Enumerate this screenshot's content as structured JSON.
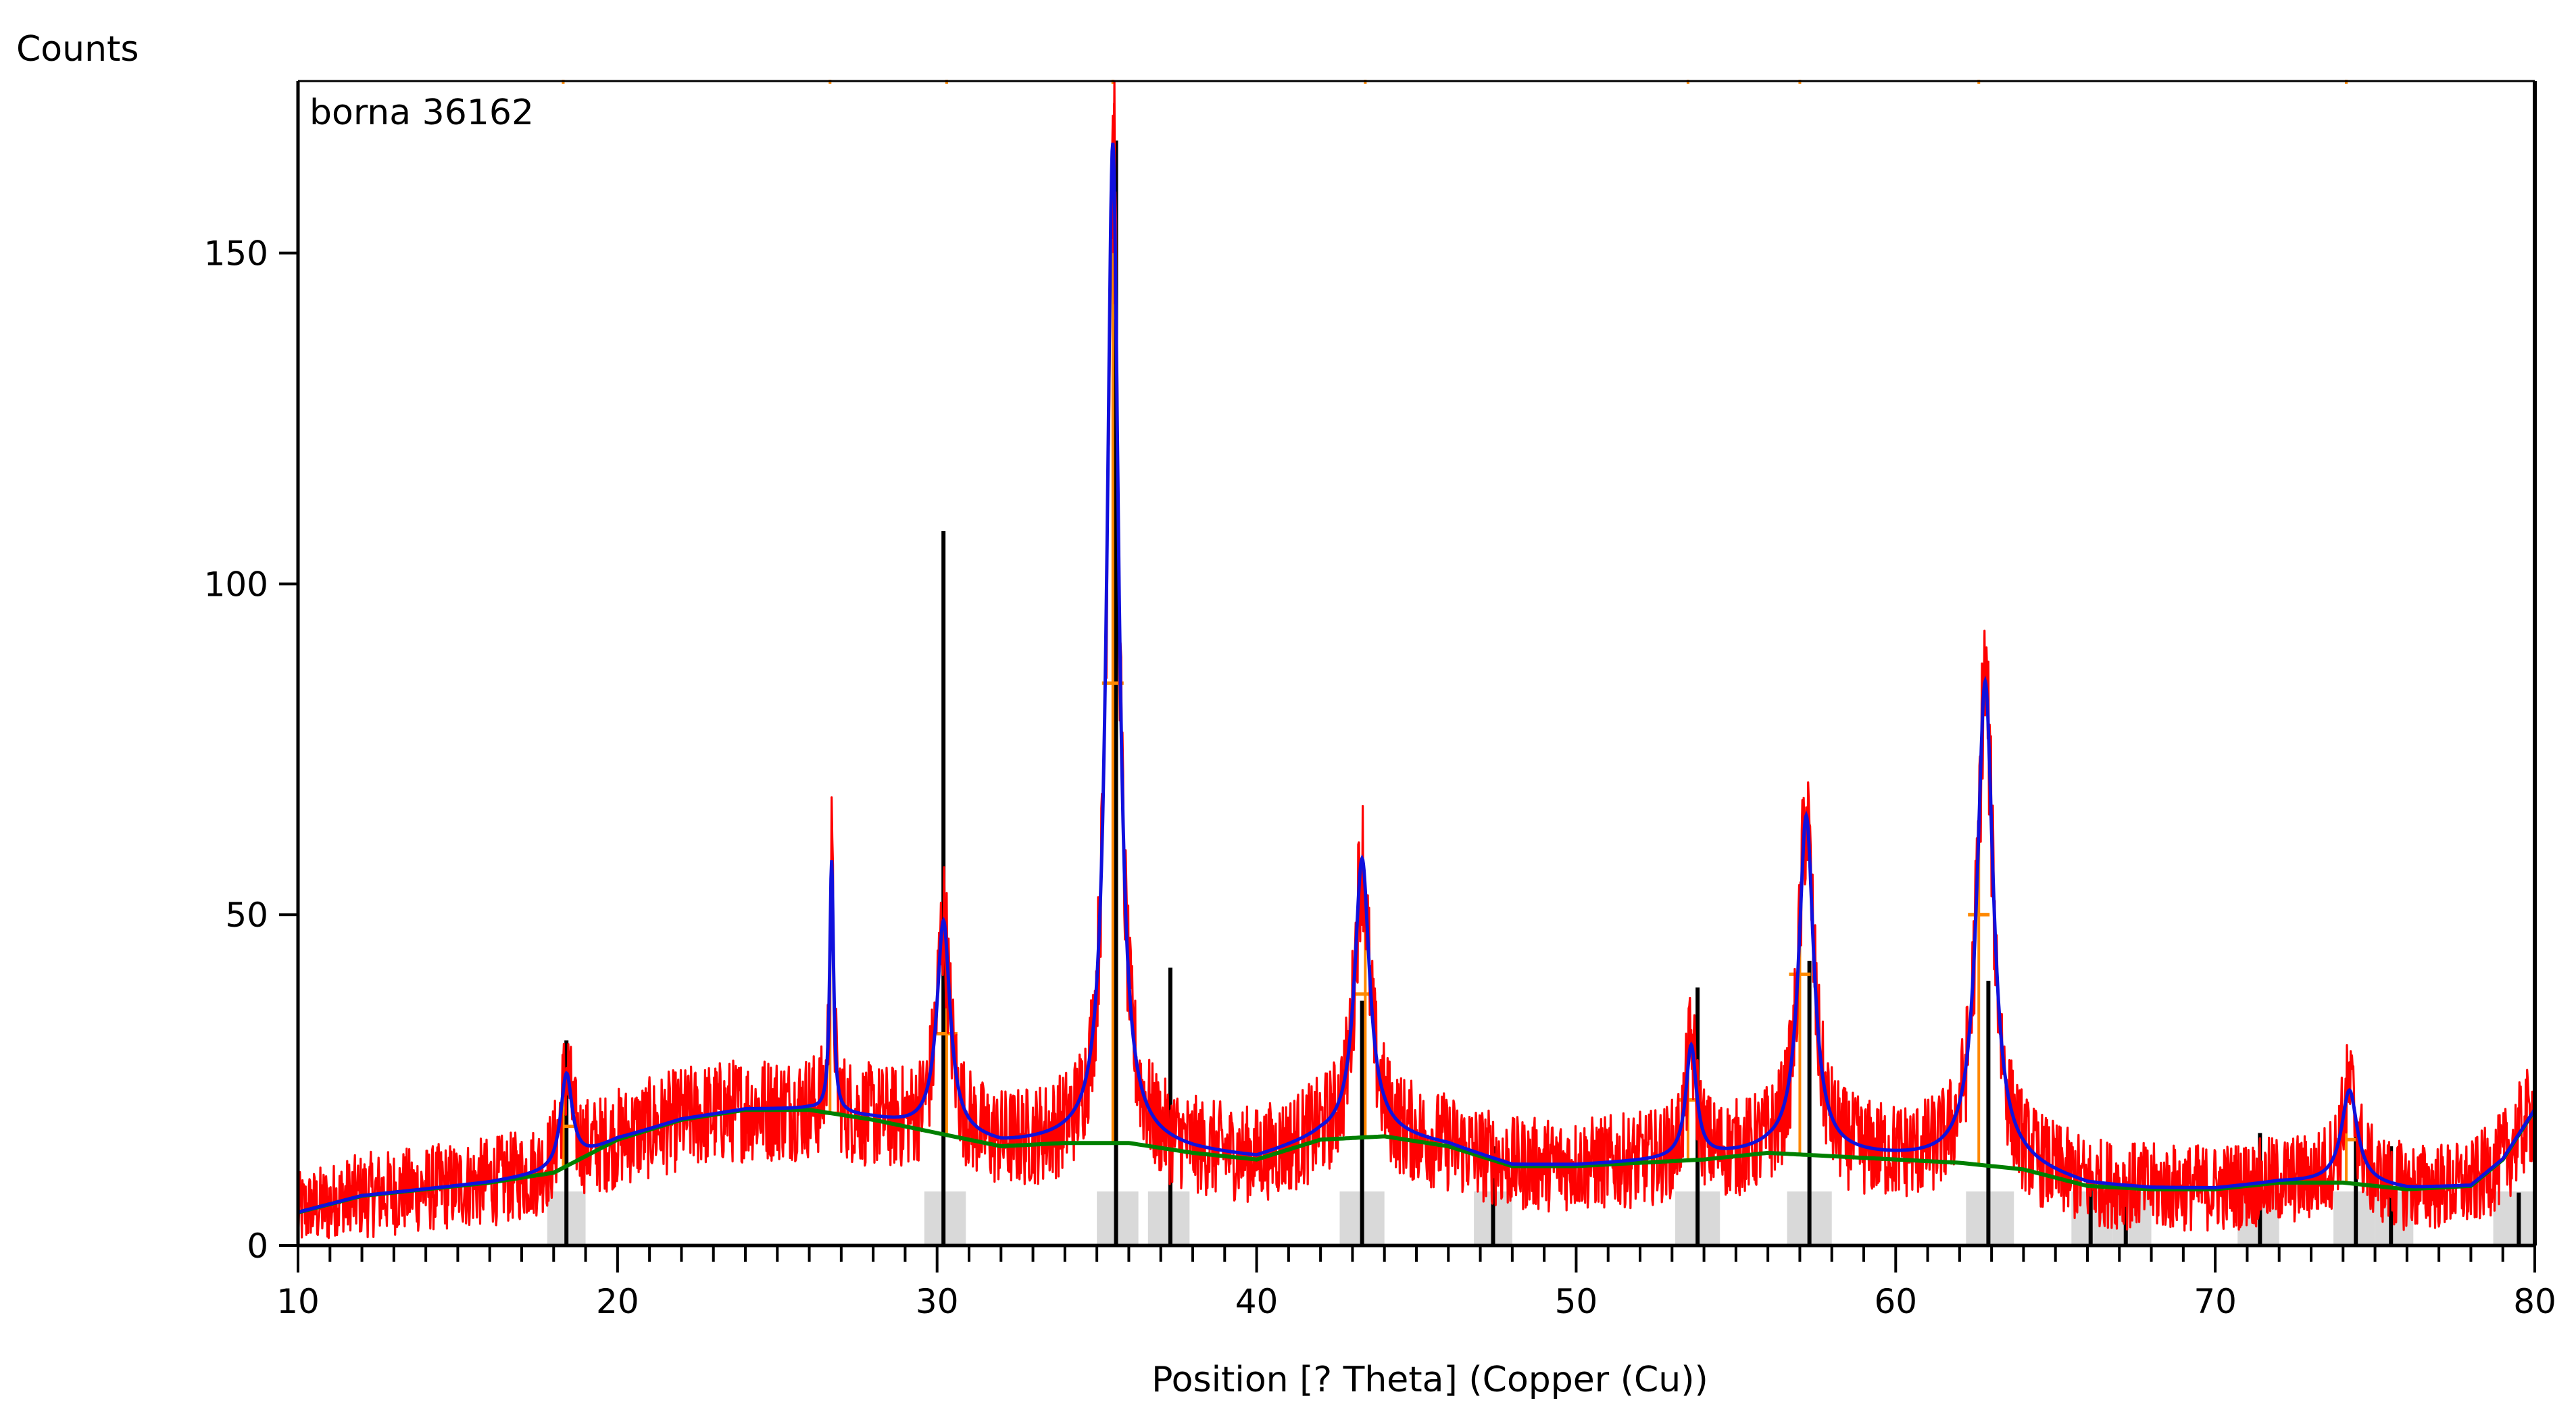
{
  "chart_data": {
    "type": "line",
    "title": "borna 36162",
    "ylabel": "Counts",
    "xlabel": "Position [?  Theta] (Copper (Cu))",
    "xlim": [
      10,
      80
    ],
    "ylim": [
      0,
      176
    ],
    "x_ticks": [
      10,
      20,
      30,
      40,
      50,
      60,
      70,
      80
    ],
    "x_tick_labels": [
      "10",
      "20",
      "30",
      "40",
      "50",
      "60",
      "70",
      "80"
    ],
    "y_ticks": [
      0,
      50,
      100,
      150
    ],
    "y_tick_labels": [
      "0",
      "50",
      "100",
      "150"
    ],
    "grid": false,
    "colors": {
      "observed": "#ff0000",
      "calculated": "#1010dd",
      "background": "#008000",
      "peak_markers": "#ff8800",
      "reference_lines": "#000000",
      "reference_bands": "#d9d9d9"
    },
    "background_curve": {
      "x": [
        10,
        12,
        14,
        16,
        18,
        20,
        22,
        24,
        26,
        28,
        30,
        32,
        34,
        36,
        38,
        40,
        42,
        44,
        46,
        48,
        50,
        52,
        54,
        56,
        58,
        60,
        62,
        64,
        66,
        68,
        70,
        72,
        74,
        76,
        78,
        79,
        80
      ],
      "y": [
        5,
        7.5,
        8.5,
        9.5,
        11,
        16,
        19,
        20.5,
        20.5,
        19,
        17,
        15,
        15.5,
        15.5,
        14,
        13,
        16,
        16.5,
        15,
        12,
        12,
        12.5,
        13,
        14,
        13.5,
        13,
        12.5,
        11.5,
        9,
        8.5,
        8.5,
        9.5,
        9.5,
        8.5,
        9,
        13,
        20.5
      ]
    },
    "peaks": [
      {
        "pos": 18.4,
        "height": 14,
        "width": 0.22
      },
      {
        "pos": 26.7,
        "height": 38,
        "width": 0.07
      },
      {
        "pos": 30.2,
        "height": 32,
        "width": 0.25
      },
      {
        "pos": 35.5,
        "height": 151,
        "width": 0.22
      },
      {
        "pos": 43.3,
        "height": 42,
        "width": 0.28
      },
      {
        "pos": 53.6,
        "height": 17,
        "width": 0.2
      },
      {
        "pos": 57.2,
        "height": 51,
        "width": 0.28
      },
      {
        "pos": 62.8,
        "height": 73,
        "width": 0.3
      },
      {
        "pos": 74.2,
        "height": 14,
        "width": 0.3
      }
    ],
    "observed_max": {
      "x": 35.55,
      "y": 177
    },
    "peak_markers": [
      {
        "x": 18.3,
        "y": 18
      },
      {
        "x": 26.65,
        "y": 20
      },
      {
        "x": 30.3,
        "y": 32
      },
      {
        "x": 35.5,
        "y": 85
      },
      {
        "x": 43.4,
        "y": 38
      },
      {
        "x": 53.5,
        "y": 22
      },
      {
        "x": 57.0,
        "y": 41
      },
      {
        "x": 62.6,
        "y": 50
      },
      {
        "x": 74.1,
        "y": 16
      }
    ],
    "reference_lines": [
      {
        "x": 18.4,
        "y": 31
      },
      {
        "x": 30.2,
        "y": 108
      },
      {
        "x": 35.6,
        "y": 167
      },
      {
        "x": 37.3,
        "y": 42
      },
      {
        "x": 43.3,
        "y": 37
      },
      {
        "x": 47.4,
        "y": 15
      },
      {
        "x": 53.8,
        "y": 39
      },
      {
        "x": 57.3,
        "y": 43
      },
      {
        "x": 62.9,
        "y": 40
      },
      {
        "x": 66.1,
        "y": 9
      },
      {
        "x": 67.2,
        "y": 9
      },
      {
        "x": 71.4,
        "y": 17
      },
      {
        "x": 74.4,
        "y": 17
      },
      {
        "x": 75.5,
        "y": 15
      },
      {
        "x": 79.5,
        "y": 8
      }
    ],
    "reference_bands": [
      [
        17.8,
        19.0
      ],
      [
        29.6,
        30.9
      ],
      [
        35.0,
        36.3
      ],
      [
        36.6,
        37.9
      ],
      [
        42.6,
        44.0
      ],
      [
        46.8,
        48.0
      ],
      [
        53.1,
        54.5
      ],
      [
        56.6,
        58.0
      ],
      [
        62.2,
        63.7
      ],
      [
        65.5,
        66.8
      ],
      [
        66.8,
        68.0
      ],
      [
        70.7,
        72.0
      ],
      [
        73.7,
        75.0
      ],
      [
        75.0,
        76.2
      ],
      [
        78.7,
        80.0
      ]
    ]
  }
}
